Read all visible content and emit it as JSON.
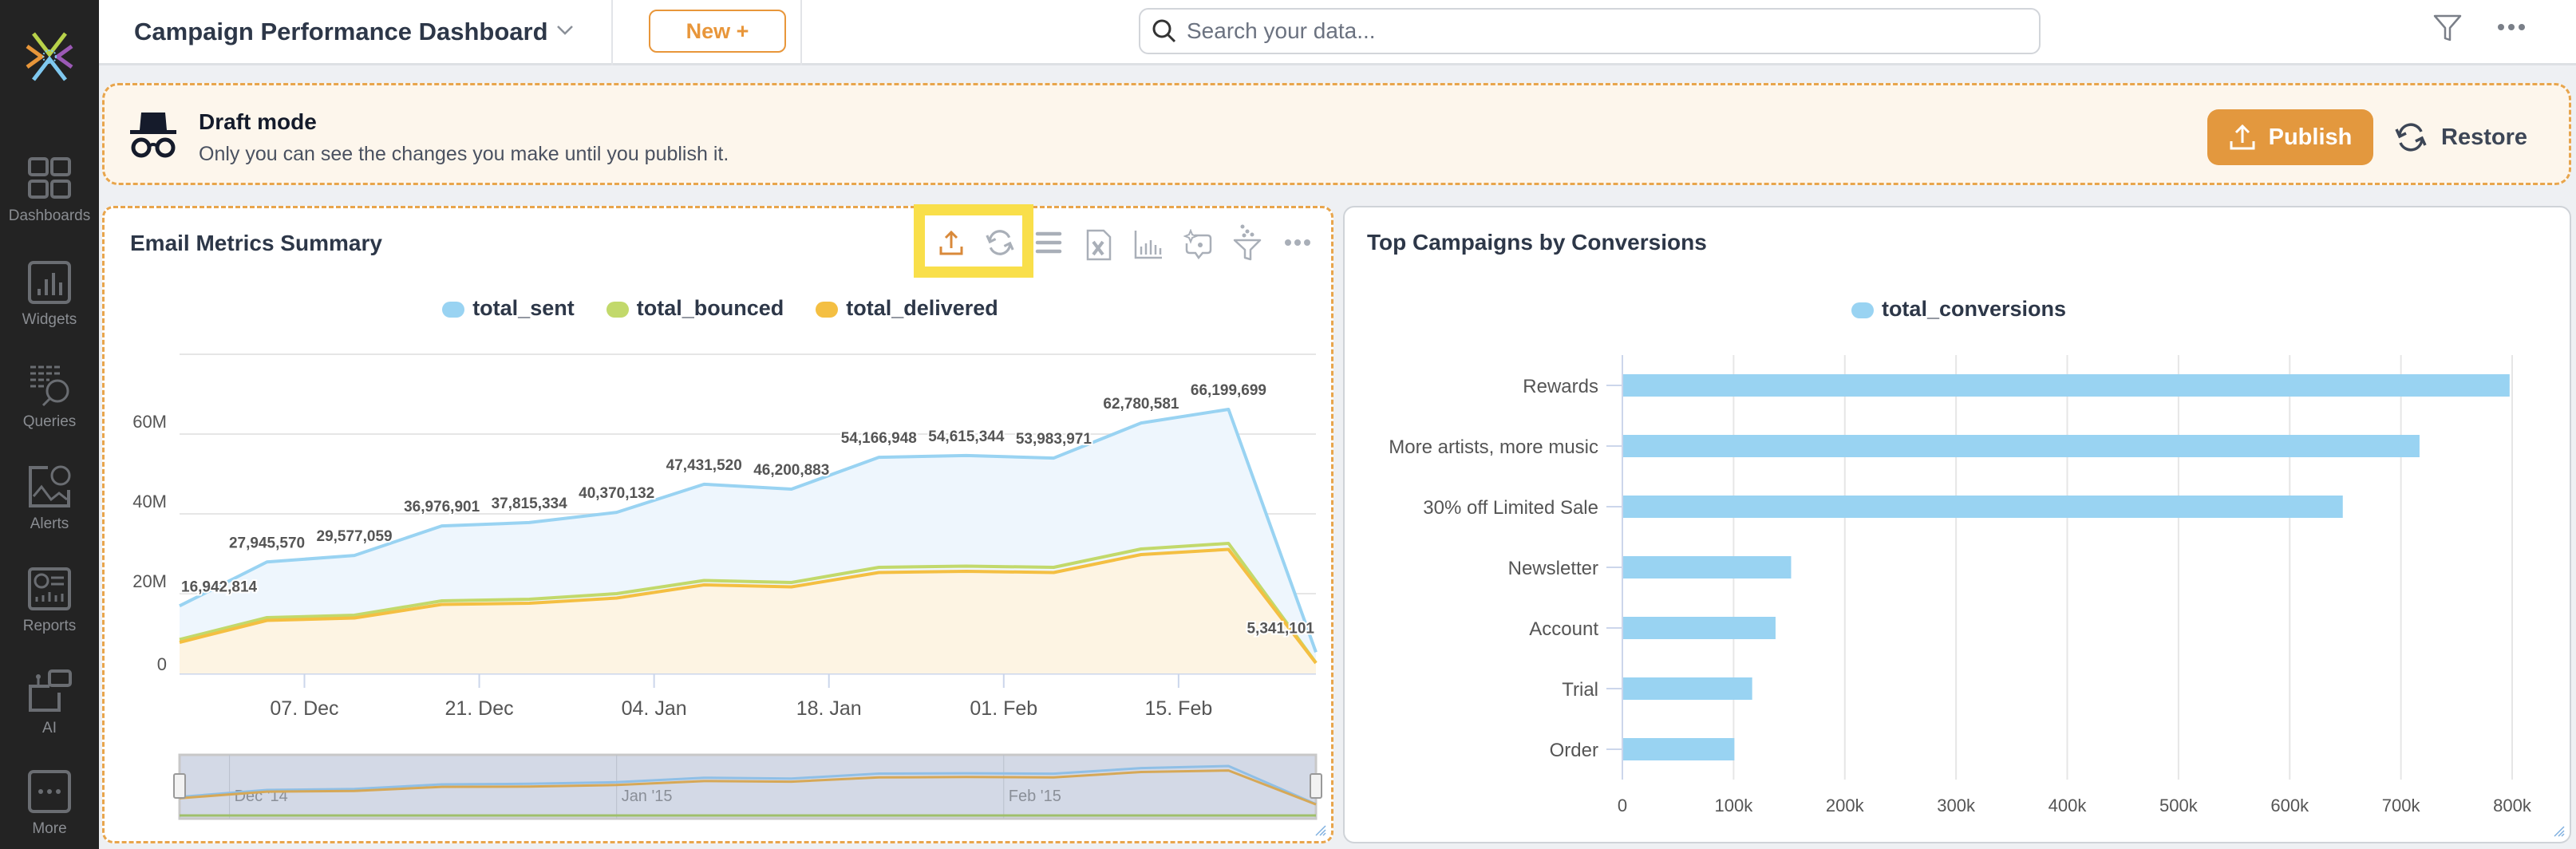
{
  "app": {
    "title": "Campaign Performance Dashboard",
    "new_label": "New +",
    "search_placeholder": "Search your data..."
  },
  "sidebar": {
    "items": [
      {
        "label": "Dashboards",
        "icon": "dashboards-icon"
      },
      {
        "label": "Widgets",
        "icon": "widgets-icon"
      },
      {
        "label": "Queries",
        "icon": "queries-icon"
      },
      {
        "label": "Alerts",
        "icon": "alerts-icon"
      },
      {
        "label": "Reports",
        "icon": "reports-icon"
      },
      {
        "label": "AI",
        "icon": "ai-icon"
      },
      {
        "label": "More",
        "icon": "more-icon"
      }
    ]
  },
  "banner": {
    "title": "Draft mode",
    "subtitle": "Only you can see the changes you make until you publish it.",
    "publish_label": "Publish",
    "restore_label": "Restore"
  },
  "colors": {
    "accent": "#e3983e",
    "total_sent": "#99d3f2",
    "total_bounced": "#c2d96b",
    "total_delivered": "#f4bf42",
    "bar": "#99d3f2",
    "highlight": "#f9df4a"
  },
  "widgets": {
    "email": {
      "title": "Email Metrics Summary",
      "toolbar": [
        "export-icon",
        "refresh-icon",
        "menu-icon",
        "excel-icon",
        "chart-icon",
        "ai-insights-icon",
        "filter-icon",
        "more-icon"
      ]
    },
    "campaigns": {
      "title": "Top Campaigns by Conversions"
    }
  },
  "chart_data": [
    {
      "type": "area",
      "title": "Email Metrics Summary",
      "x": [
        "2014-11-27",
        "2014-12-04",
        "2014-12-11",
        "2014-12-18",
        "2014-12-25",
        "2015-01-01",
        "2015-01-08",
        "2015-01-15",
        "2015-01-22",
        "2015-01-29",
        "2015-02-05",
        "2015-02-12",
        "2015-02-19",
        "2015-02-26"
      ],
      "series": [
        {
          "name": "total_sent",
          "values": [
            16942814,
            27945570,
            29577059,
            36976901,
            37815334,
            40370132,
            47431520,
            46200883,
            54166948,
            54615344,
            53983971,
            62780581,
            66199699,
            5341101
          ],
          "labels_shown": true
        },
        {
          "name": "total_bounced",
          "values": [
            8500000,
            14000000,
            14600000,
            18200000,
            18600000,
            20000000,
            23300000,
            22800000,
            26600000,
            26900000,
            26600000,
            31200000,
            32600000,
            2700000
          ]
        },
        {
          "name": "total_delivered",
          "values": [
            7800000,
            13300000,
            13900000,
            17300000,
            17600000,
            18900000,
            22200000,
            21700000,
            25300000,
            25600000,
            25300000,
            29800000,
            31100000,
            2600000
          ]
        }
      ],
      "ylim": [
        0,
        80000000
      ],
      "yticks": [
        "0",
        "20M",
        "40M",
        "60M"
      ],
      "xticks": [
        "07. Dec",
        "21. Dec",
        "04. Jan",
        "18. Jan",
        "01. Feb",
        "15. Feb"
      ],
      "xtick_dates": [
        "2014-12-07",
        "2014-12-21",
        "2015-01-04",
        "2015-01-18",
        "2015-02-01",
        "2015-02-15"
      ],
      "navigator_labels": [
        "Dec '14",
        "Jan '15",
        "Feb '15"
      ],
      "navigator_dates": [
        "2014-12-01",
        "2015-01-01",
        "2015-02-01"
      ],
      "legend": "top-center",
      "grid": true
    },
    {
      "type": "bar",
      "orientation": "horizontal",
      "title": "Top Campaigns by Conversions",
      "categories": [
        "Rewards",
        "More artists, more music",
        "30% off Limited Sale",
        "Newsletter",
        "Account",
        "Trial",
        "Order"
      ],
      "series": [
        {
          "name": "total_conversions",
          "values": [
            797000,
            716000,
            647000,
            151000,
            137000,
            116000,
            100000
          ]
        }
      ],
      "xlim": [
        0,
        800000
      ],
      "xticks": [
        "0",
        "100k",
        "200k",
        "300k",
        "400k",
        "500k",
        "600k",
        "700k",
        "800k"
      ],
      "legend": "top-center",
      "grid": true
    }
  ]
}
